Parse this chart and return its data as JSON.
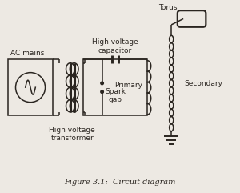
{
  "title": "Figure 3.1:  Circuit diagram",
  "bg_color": "#ede9e3",
  "line_color": "#2a2520",
  "labels": {
    "ac_mains": "AC mains",
    "high_voltage_transformer": "High voltage\ntransformer",
    "high_voltage_capacitor": "High voltage\ncapacitor",
    "primary": "Primary",
    "spark_gap": "Spark\ngap",
    "secondary": "Secondary",
    "torus": "Torus"
  },
  "font_size": 6.5,
  "xlim": [
    0,
    10
  ],
  "ylim": [
    0,
    8
  ]
}
